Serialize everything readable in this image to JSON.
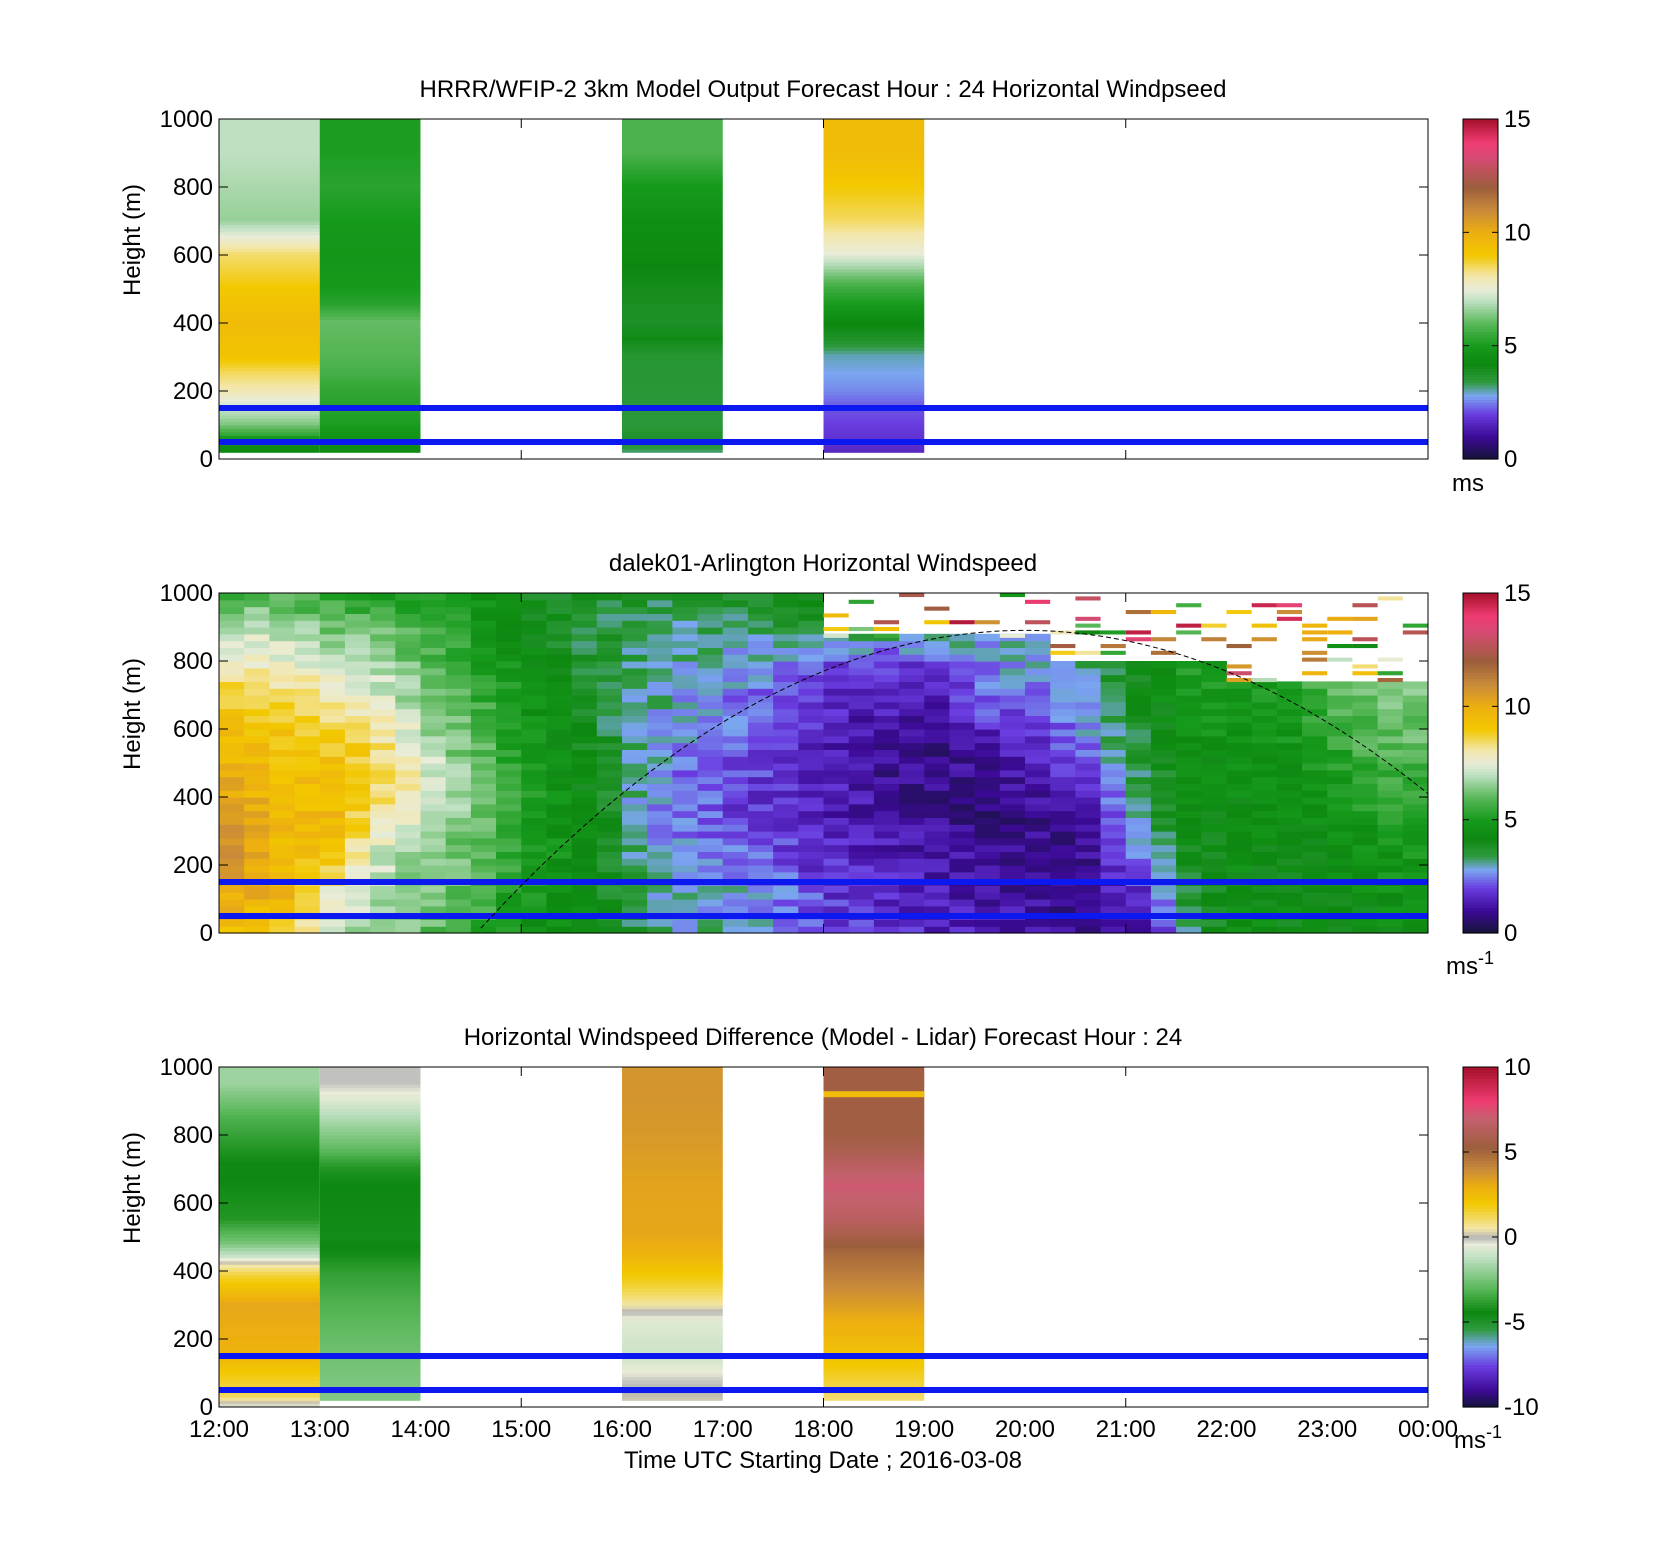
{
  "chart_data": [
    {
      "type": "heatmap",
      "title": "HRRR/WFIP-2 3km Model Output   Forecast Hour : 24 Horizontal Windpseed",
      "ylabel": "Height (m)",
      "xlabel": "",
      "xlim": [
        "12:00",
        "00:00"
      ],
      "ylim": [
        0,
        1000
      ],
      "y_ticks": [
        "0",
        "200",
        "400",
        "600",
        "800",
        "1000"
      ],
      "x_ticks": [],
      "colorbar": {
        "ticks": [
          "0",
          "5",
          "10",
          "15"
        ],
        "range": [
          0,
          15
        ],
        "unit_label": "ms",
        "unit_sup": "",
        "scheme": "speed"
      },
      "reference_heights_m": [
        150,
        50
      ],
      "columns": [
        {
          "start_h": 0,
          "end_h": 1,
          "bottom_m": 20,
          "levels": [
            [
              0,
              4.5
            ],
            [
              40,
              4.0
            ],
            [
              70,
              5.5
            ],
            [
              100,
              6.4
            ],
            [
              150,
              7.2
            ],
            [
              200,
              8.0
            ],
            [
              250,
              8.5
            ],
            [
              300,
              9.2
            ],
            [
              400,
              9.5
            ],
            [
              500,
              9.0
            ],
            [
              600,
              8.4
            ],
            [
              700,
              6.6
            ],
            [
              900,
              7.0
            ]
          ]
        },
        {
          "start_h": 1,
          "end_h": 2,
          "bottom_m": 20,
          "levels": [
            [
              0,
              4.3
            ],
            [
              50,
              4.6
            ],
            [
              100,
              5.1
            ],
            [
              200,
              5.4
            ],
            [
              250,
              5.7
            ],
            [
              300,
              5.9
            ],
            [
              400,
              6.1
            ],
            [
              450,
              5.3
            ],
            [
              500,
              5.0
            ],
            [
              600,
              4.8
            ],
            [
              700,
              5.0
            ],
            [
              800,
              5.3
            ],
            [
              900,
              5.1
            ]
          ]
        },
        {
          "start_h": 4,
          "end_h": 5,
          "bottom_m": 20,
          "levels": [
            [
              0,
              2.8
            ],
            [
              30,
              3.5
            ],
            [
              50,
              3.8
            ],
            [
              100,
              3.5
            ],
            [
              300,
              3.6
            ],
            [
              350,
              4.1
            ],
            [
              400,
              3.8
            ],
            [
              500,
              4.0
            ],
            [
              600,
              4.3
            ],
            [
              700,
              4.5
            ],
            [
              800,
              5.0
            ],
            [
              850,
              5.4
            ],
            [
              900,
              5.8
            ]
          ]
        },
        {
          "start_h": 6,
          "end_h": 7,
          "bottom_m": 20,
          "levels": [
            [
              0,
              1.5
            ],
            [
              40,
              1.7
            ],
            [
              100,
              2.0
            ],
            [
              150,
              2.2
            ],
            [
              200,
              2.6
            ],
            [
              250,
              2.8
            ],
            [
              300,
              3.0
            ],
            [
              350,
              3.8
            ],
            [
              400,
              4.3
            ],
            [
              450,
              5.0
            ],
            [
              500,
              5.6
            ],
            [
              600,
              7.5
            ],
            [
              700,
              8.5
            ],
            [
              800,
              9.0
            ],
            [
              900,
              9.5
            ]
          ]
        }
      ]
    },
    {
      "type": "heatmap",
      "title": "dalek01-Arlington  Horizontal Windspeed",
      "ylabel": "Height (m)",
      "xlabel": "",
      "xlim": [
        "12:00",
        "00:00"
      ],
      "ylim": [
        0,
        1000
      ],
      "y_ticks": [
        "0",
        "200",
        "400",
        "600",
        "800",
        "1000"
      ],
      "x_ticks": [],
      "colorbar": {
        "ticks": [
          "0",
          "5",
          "10",
          "15"
        ],
        "range": [
          0,
          15
        ],
        "unit_label": "ms",
        "unit_sup": "-1",
        "scheme": "speed"
      },
      "reference_heights_m": [
        150,
        50
      ],
      "profile_columns_approx": [
        {
          "t_h": 0.0,
          "values": [
            9.5,
            10.2,
            11.0,
            10.5,
            10.0,
            9.5,
            9.0,
            8.0,
            7.0,
            5.5
          ]
        },
        {
          "t_h": 0.5,
          "values": [
            9.0,
            9.8,
            9.6,
            9.6,
            9.4,
            9.2,
            8.6,
            7.6,
            6.8,
            5.6
          ]
        },
        {
          "t_h": 1.0,
          "values": [
            7.2,
            7.6,
            9.3,
            9.6,
            9.3,
            9.0,
            8.2,
            7.4,
            6.2,
            5.2
          ]
        },
        {
          "t_h": 1.5,
          "values": [
            6.6,
            6.8,
            7.2,
            8.0,
            8.8,
            8.2,
            7.4,
            6.8,
            6.0,
            5.0
          ]
        },
        {
          "t_h": 2.0,
          "values": [
            6.0,
            6.2,
            6.6,
            7.0,
            7.2,
            6.8,
            6.4,
            6.0,
            5.4,
            4.8
          ]
        },
        {
          "t_h": 2.5,
          "values": [
            5.4,
            5.6,
            5.8,
            6.0,
            6.0,
            5.8,
            5.6,
            5.2,
            4.8,
            4.5
          ]
        },
        {
          "t_h": 3.0,
          "values": [
            4.6,
            4.8,
            5.0,
            5.0,
            5.0,
            4.8,
            4.6,
            4.4,
            4.2,
            4.0
          ]
        },
        {
          "t_h": 3.5,
          "values": [
            4.2,
            4.4,
            4.4,
            4.4,
            4.2,
            4.0,
            3.8,
            3.6,
            3.6,
            3.8
          ]
        },
        {
          "t_h": 4.0,
          "values": [
            3.6,
            3.4,
            3.2,
            3.0,
            3.0,
            3.2,
            3.2,
            3.2,
            3.4,
            3.6
          ]
        },
        {
          "t_h": 4.5,
          "values": [
            3.0,
            2.8,
            2.6,
            2.4,
            2.4,
            2.6,
            2.8,
            3.0,
            3.2,
            3.6
          ]
        },
        {
          "t_h": 5.0,
          "values": [
            3.2,
            2.8,
            2.4,
            2.0,
            2.0,
            2.4,
            2.4,
            2.8,
            3.2,
            3.8
          ]
        },
        {
          "t_h": 5.5,
          "values": [
            2.6,
            2.4,
            2.0,
            1.8,
            1.8,
            1.8,
            2.0,
            2.6,
            3.4,
            4.0
          ]
        },
        {
          "t_h": 6.0,
          "values": [
            2.0,
            1.8,
            1.6,
            1.4,
            1.4,
            1.4,
            1.6,
            2.0,
            3.8,
            4.5
          ]
        },
        {
          "t_h": 6.5,
          "values": [
            1.8,
            1.6,
            1.4,
            1.2,
            1.0,
            1.2,
            1.4,
            1.8,
            3.6,
            4.6
          ]
        },
        {
          "t_h": 7.0,
          "values": [
            1.6,
            1.4,
            1.2,
            1.0,
            0.8,
            1.0,
            1.2,
            2.0,
            3.4,
            4.4
          ]
        },
        {
          "t_h": 7.5,
          "values": [
            1.4,
            1.2,
            1.0,
            0.8,
            1.0,
            1.4,
            2.2,
            2.6,
            3.0,
            4.2
          ]
        },
        {
          "t_h": 8.0,
          "values": [
            1.2,
            1.0,
            0.8,
            1.0,
            1.2,
            1.8,
            2.4,
            2.8,
            3.2,
            4.4
          ]
        },
        {
          "t_h": 8.5,
          "values": [
            1.0,
            0.9,
            1.0,
            1.4,
            2.0,
            2.6,
            3.0,
            3.2,
            3.6,
            4.6
          ]
        },
        {
          "t_h": 9.0,
          "values": [
            1.4,
            1.8,
            2.4,
            3.2,
            3.4,
            3.6,
            4.0,
            4.2,
            4.4,
            4.8
          ]
        },
        {
          "t_h": 9.5,
          "values": [
            3.0,
            3.6,
            4.0,
            4.2,
            4.4,
            4.6,
            4.8,
            5.0,
            5.2,
            5.4
          ]
        },
        {
          "t_h": 10.0,
          "values": [
            4.6,
            4.4,
            4.4,
            4.4,
            4.6,
            4.6,
            4.8,
            5.0,
            5.4,
            5.8
          ]
        },
        {
          "t_h": 10.5,
          "values": [
            4.2,
            4.2,
            4.2,
            4.4,
            4.6,
            4.8,
            5.0,
            5.2,
            5.6,
            6.0
          ]
        },
        {
          "t_h": 11.0,
          "values": [
            4.2,
            4.2,
            4.4,
            4.6,
            5.0,
            5.4,
            5.8,
            6.2,
            6.6,
            7.0
          ]
        },
        {
          "t_h": 11.5,
          "values": [
            4.4,
            4.6,
            4.8,
            5.2,
            5.6,
            6.0,
            6.4,
            6.8,
            7.2,
            7.4
          ]
        }
      ]
    },
    {
      "type": "heatmap",
      "title": "Horizontal Windspeed Difference (Model - Lidar) Forecast Hour : 24",
      "ylabel": "Height (m)",
      "xlabel": "Time UTC  Starting Date ; 2016-03-08",
      "xlim": [
        "12:00",
        "00:00"
      ],
      "ylim": [
        0,
        1000
      ],
      "y_ticks": [
        "0",
        "200",
        "400",
        "600",
        "800",
        "1000"
      ],
      "x_ticks": [
        "12:00",
        "13:00",
        "14:00",
        "15:00",
        "16:00",
        "17:00",
        "18:00",
        "19:00",
        "20:00",
        "21:00",
        "22:00",
        "23:00",
        "00:00"
      ],
      "colorbar": {
        "ticks": [
          "-10",
          "-5",
          "0",
          "5",
          "10"
        ],
        "range": [
          -10,
          10
        ],
        "unit_label": "ms",
        "unit_sup": "-1",
        "scheme": "diff"
      },
      "reference_heights_m": [
        150,
        50
      ],
      "columns": [
        {
          "start_h": 0,
          "end_h": 1,
          "bottom_m": 0,
          "levels": [
            [
              0,
              -0.3
            ],
            [
              30,
              1.2
            ],
            [
              100,
              2.0
            ],
            [
              150,
              2.8
            ],
            [
              200,
              3.0
            ],
            [
              300,
              3.2
            ],
            [
              380,
              1.6
            ],
            [
              420,
              0.2
            ],
            [
              440,
              -1.0
            ],
            [
              480,
              -2.5
            ],
            [
              550,
              -4.0
            ],
            [
              700,
              -4.5
            ],
            [
              850,
              -3.2
            ],
            [
              950,
              -1.8
            ]
          ]
        },
        {
          "start_h": 1,
          "end_h": 2,
          "bottom_m": 20,
          "levels": [
            [
              0,
              -2.2
            ],
            [
              150,
              -2.6
            ],
            [
              300,
              -3.2
            ],
            [
              400,
              -3.8
            ],
            [
              450,
              -4.3
            ],
            [
              500,
              -4.6
            ],
            [
              650,
              -4.4
            ],
            [
              700,
              -4.0
            ],
            [
              750,
              -3.0
            ],
            [
              800,
              -2.2
            ],
            [
              850,
              -1.4
            ],
            [
              900,
              -0.6
            ],
            [
              950,
              -0.1
            ]
          ]
        },
        {
          "start_h": 4,
          "end_h": 5,
          "bottom_m": 20,
          "levels": [
            [
              0,
              0.3
            ],
            [
              80,
              -0.2
            ],
            [
              150,
              -1.0
            ],
            [
              250,
              -0.6
            ],
            [
              300,
              0.6
            ],
            [
              350,
              1.5
            ],
            [
              400,
              2.2
            ],
            [
              450,
              2.9
            ],
            [
              500,
              3.2
            ],
            [
              650,
              3.3
            ],
            [
              800,
              3.6
            ],
            [
              900,
              3.7
            ]
          ]
        },
        {
          "start_h": 6,
          "end_h": 7,
          "bottom_m": 20,
          "levels": [
            [
              0,
              0.8
            ],
            [
              150,
              2.3
            ],
            [
              250,
              3.0
            ],
            [
              350,
              4.0
            ],
            [
              450,
              5.0
            ],
            [
              550,
              6.5
            ],
            [
              650,
              7.2
            ],
            [
              750,
              6.0
            ],
            [
              800,
              5.5
            ]
          ]
        }
      ],
      "segments": [
        {
          "start_h": 6,
          "end_h": 7,
          "height_m": 920,
          "value": 2.5
        }
      ]
    }
  ]
}
